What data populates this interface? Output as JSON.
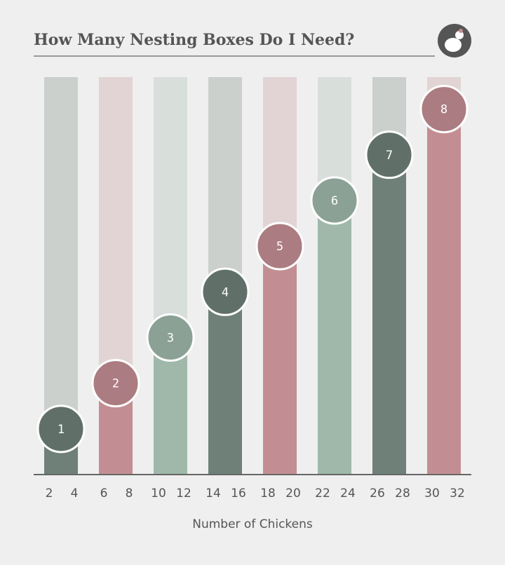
{
  "chart_data": {
    "type": "bar",
    "title": "How Many Nesting Boxes Do I Need?",
    "xlabel": "Number of Chickens",
    "categories": [
      [
        2,
        4
      ],
      [
        6,
        8
      ],
      [
        10,
        12
      ],
      [
        14,
        16
      ],
      [
        18,
        20
      ],
      [
        22,
        24
      ],
      [
        26,
        28
      ],
      [
        30,
        32
      ]
    ],
    "values": [
      1,
      2,
      3,
      4,
      5,
      6,
      7,
      8
    ],
    "colors": [
      "#6e8077",
      "#c38e93",
      "#9fb8aa",
      "#6e8077",
      "#c38e93",
      "#9fb8aa",
      "#6e8077",
      "#c38e93"
    ],
    "ylim": [
      0,
      8.7
    ]
  }
}
